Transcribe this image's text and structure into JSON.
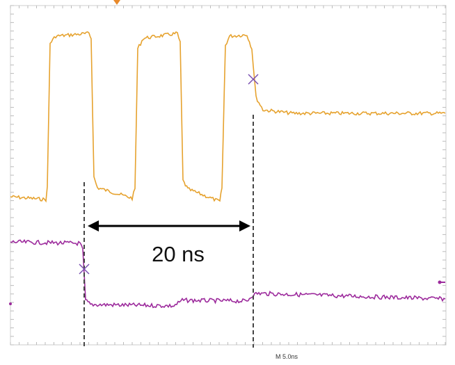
{
  "annotation": "20 ns",
  "timebase": "M 5.0ns"
}
